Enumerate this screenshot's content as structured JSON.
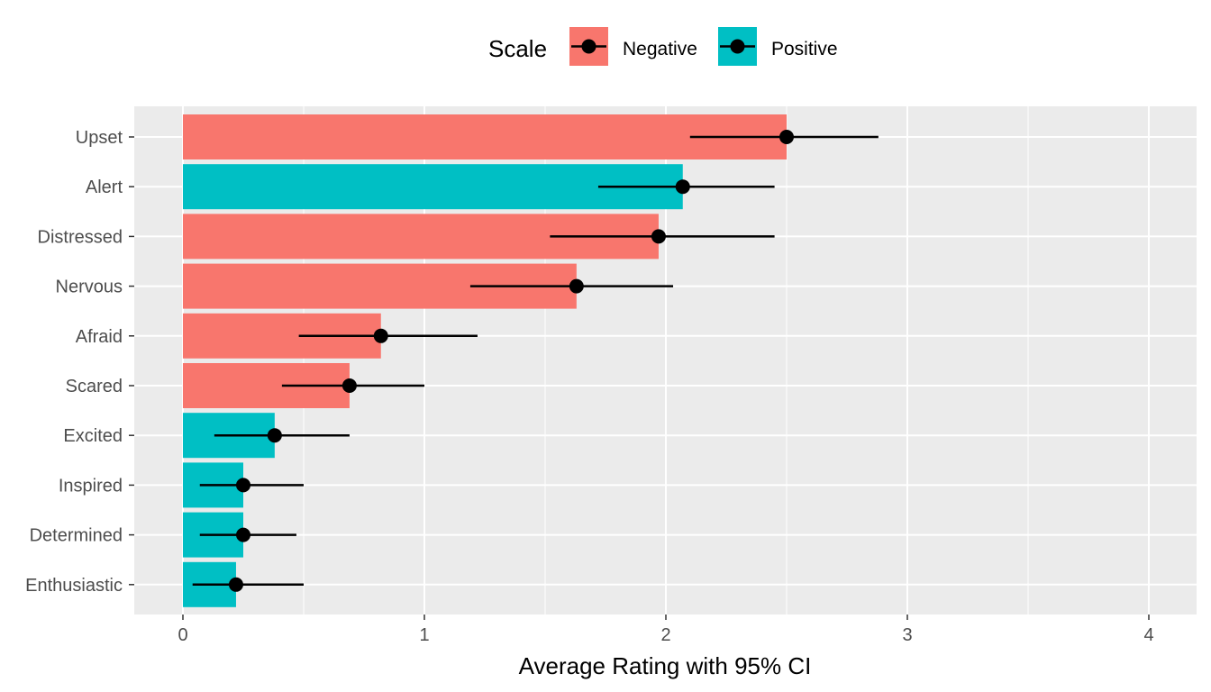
{
  "chart_data": {
    "type": "bar",
    "orientation": "horizontal",
    "xlabel": "Average Rating with 95% CI",
    "ylabel": "",
    "xlim": [
      -0.2,
      4.2
    ],
    "xticks": [
      0,
      1,
      2,
      3,
      4
    ],
    "grid": true,
    "legend": {
      "title": "Scale",
      "position": "top",
      "entries": [
        {
          "name": "Negative",
          "color": "#F8766D"
        },
        {
          "name": "Positive",
          "color": "#00BFC4"
        }
      ]
    },
    "categories": [
      "Upset",
      "Alert",
      "Distressed",
      "Nervous",
      "Afraid",
      "Scared",
      "Excited",
      "Inspired",
      "Determined",
      "Enthusiastic"
    ],
    "values": [
      2.5,
      2.07,
      1.97,
      1.63,
      0.82,
      0.69,
      0.38,
      0.25,
      0.25,
      0.22
    ],
    "scale": [
      "Negative",
      "Positive",
      "Negative",
      "Negative",
      "Negative",
      "Negative",
      "Positive",
      "Positive",
      "Positive",
      "Positive"
    ],
    "ci_low": [
      2.1,
      1.72,
      1.52,
      1.19,
      0.48,
      0.41,
      0.13,
      0.07,
      0.07,
      0.04
    ],
    "ci_high": [
      2.88,
      2.45,
      2.45,
      2.03,
      1.22,
      1.0,
      0.69,
      0.5,
      0.47,
      0.5
    ]
  }
}
